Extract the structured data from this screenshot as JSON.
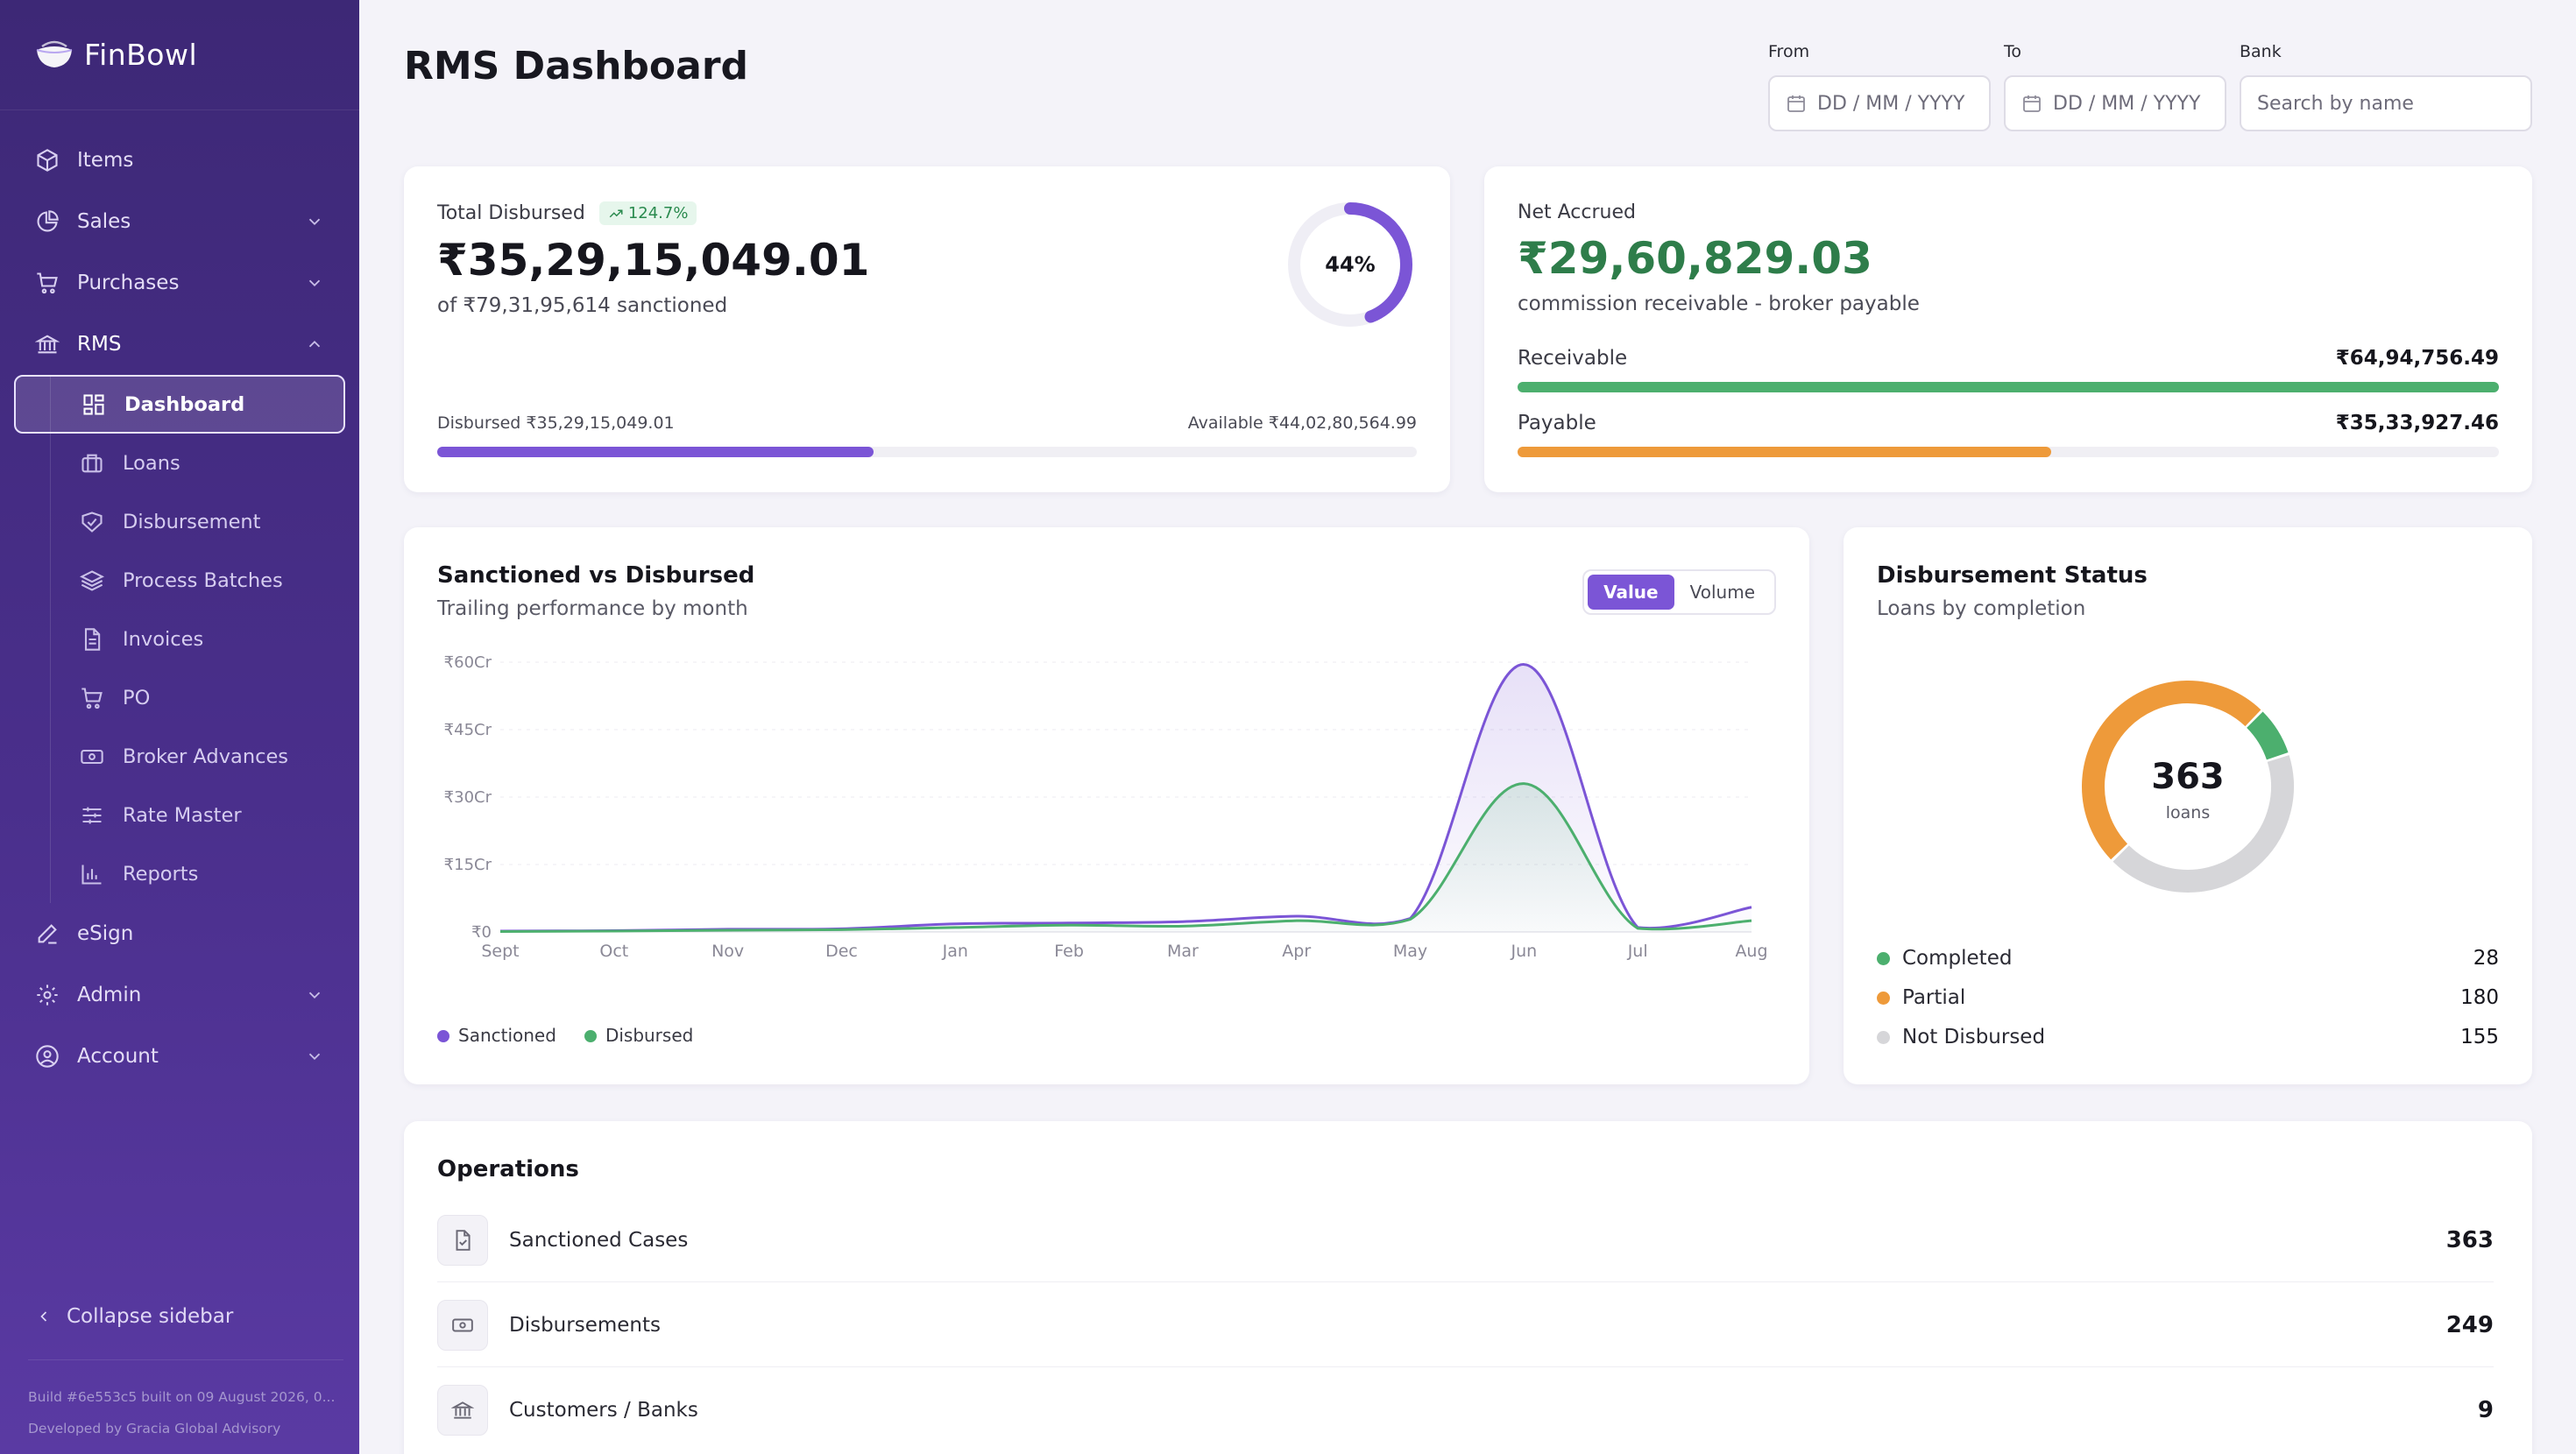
{
  "app": {
    "name": "FinBowl"
  },
  "sidebar": {
    "items": [
      {
        "label": "Items"
      },
      {
        "label": "Sales"
      },
      {
        "label": "Purchases"
      },
      {
        "label": "RMS"
      }
    ],
    "rms_children": [
      {
        "label": "Dashboard"
      },
      {
        "label": "Loans"
      },
      {
        "label": "Disbursement"
      },
      {
        "label": "Process Batches"
      },
      {
        "label": "Invoices"
      },
      {
        "label": "PO"
      },
      {
        "label": "Broker Advances"
      },
      {
        "label": "Rate Master"
      },
      {
        "label": "Reports"
      }
    ],
    "bottom_items": [
      {
        "label": "eSign"
      },
      {
        "label": "Admin"
      },
      {
        "label": "Account"
      }
    ],
    "collapse_label": "Collapse sidebar",
    "build_info": "Build #6e553c5 built on 09 August 2026, 0...",
    "developer": "Developed by Gracia Global Advisory"
  },
  "header": {
    "title": "RMS Dashboard",
    "from_label": "From",
    "from_placeholder": "DD / MM / YYYY",
    "to_label": "To",
    "to_placeholder": "DD / MM / YYYY",
    "bank_label": "Bank",
    "bank_placeholder": "Search by name"
  },
  "disbursed_card": {
    "label": "Total Disbursed",
    "badge": "124.7%",
    "amount": "₹35,29,15,049.01",
    "sanctioned": "of ₹79,31,95,614 sanctioned",
    "ring_label": "44%",
    "ring_percent": 44,
    "disbursed_text": "Disbursed ₹35,29,15,049.01",
    "available_text": "Available ₹44,02,80,564.99",
    "progress_percent": 44.5
  },
  "accrued_card": {
    "label": "Net Accrued",
    "amount": "₹29,60,829.03",
    "subtitle": "commission receivable - broker payable",
    "receivable_label": "Receivable",
    "receivable_value": "₹64,94,756.49",
    "receivable_percent": 100,
    "payable_label": "Payable",
    "payable_value": "₹35,33,927.46",
    "payable_percent": 54.4
  },
  "trend_card": {
    "title": "Sanctioned vs Disbursed",
    "subtitle": "Trailing performance by month",
    "toggle": [
      "Value",
      "Volume"
    ],
    "legend": [
      "Sanctioned",
      "Disbursed"
    ]
  },
  "chart_data": {
    "type": "line",
    "categories": [
      "Sept",
      "Oct",
      "Nov",
      "Dec",
      "Jan",
      "Feb",
      "Mar",
      "Apr",
      "May",
      "Jun",
      "Jul",
      "Aug"
    ],
    "y_ticks": [
      "₹60Cr",
      "₹45Cr",
      "₹30Cr",
      "₹15Cr",
      "₹0"
    ],
    "ylim": [
      0,
      60
    ],
    "grid": true,
    "legend_position": "bottom-left",
    "series": [
      {
        "name": "Sanctioned",
        "color": "#7b55d6",
        "values": [
          0.2,
          0.3,
          0.6,
          0.7,
          1.8,
          2.0,
          2.3,
          3.5,
          3.0,
          59.5,
          1.0,
          5.5
        ]
      },
      {
        "name": "Disbursed",
        "color": "#4caf6e",
        "values": [
          0.1,
          0.2,
          0.4,
          0.5,
          1.0,
          1.5,
          1.3,
          2.5,
          2.8,
          33.0,
          0.8,
          2.5
        ]
      }
    ]
  },
  "status_card": {
    "title": "Disbursement Status",
    "subtitle": "Loans by completion",
    "total": "363",
    "total_label": "loans",
    "rows": [
      {
        "label": "Completed",
        "value": "28",
        "color": "#4caf6e"
      },
      {
        "label": "Partial",
        "value": "180",
        "color": "#ee9a3a"
      },
      {
        "label": "Not Disbursed",
        "value": "155",
        "color": "#d6d6d9"
      }
    ]
  },
  "operations": {
    "title": "Operations",
    "rows": [
      {
        "label": "Sanctioned Cases",
        "value": "363",
        "icon": "file-check-icon"
      },
      {
        "label": "Disbursements",
        "value": "249",
        "icon": "banknote-icon"
      },
      {
        "label": "Customers / Banks",
        "value": "9",
        "icon": "bank-icon"
      }
    ]
  }
}
